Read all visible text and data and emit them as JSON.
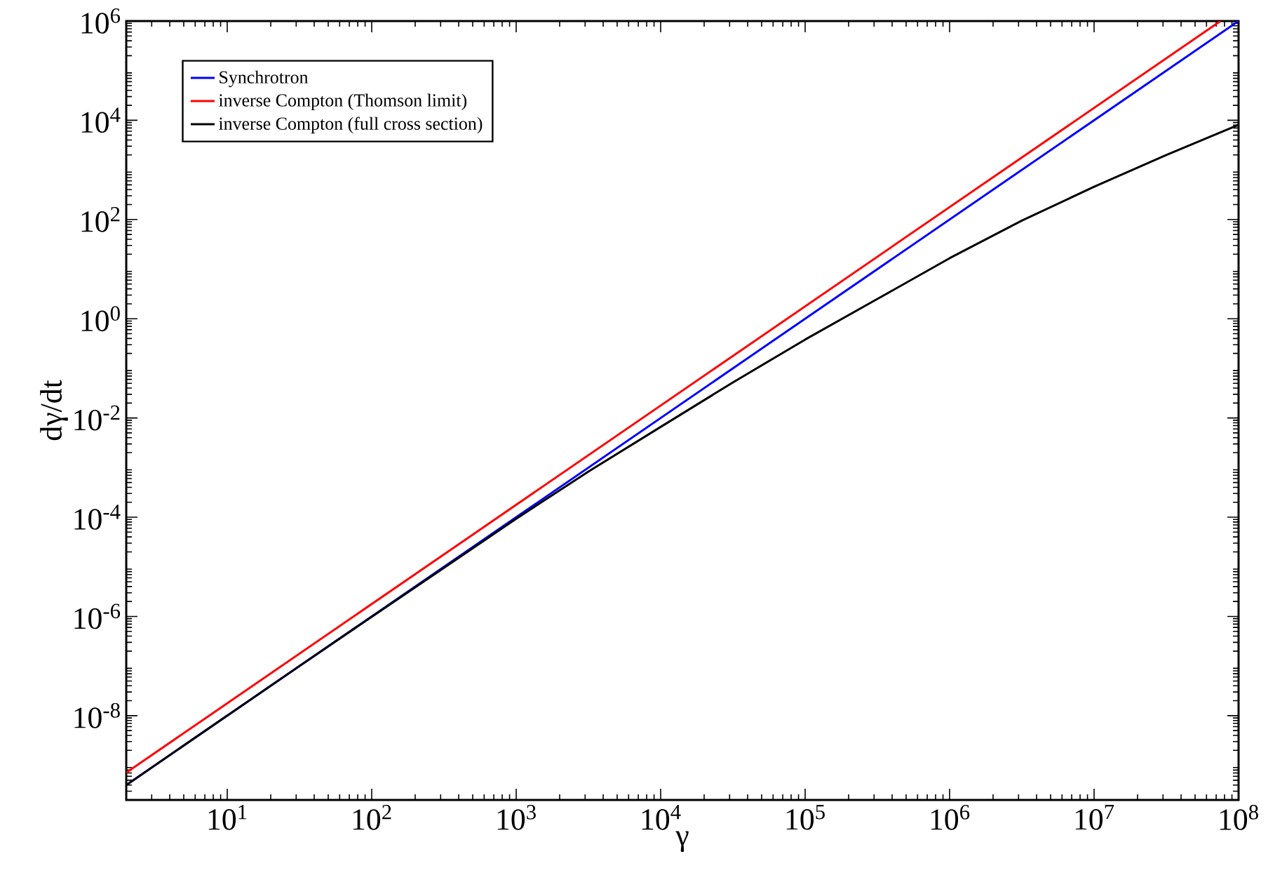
{
  "chart_data": {
    "type": "line",
    "xlabel": "γ",
    "ylabel": "dγ/dt",
    "log": "xy",
    "grid": false,
    "legend": "top left",
    "marker": "none",
    "line_style": "solid",
    "xlim": [
      2,
      100000000
    ],
    "ylim": [
      2e-10,
      1000000
    ],
    "xticks": [
      {
        "value": 10,
        "label": "10$^{1}$"
      },
      {
        "value": 100,
        "label": "10$^{2}$"
      },
      {
        "value": 1000,
        "label": "10$^{3}$"
      },
      {
        "value": 10000,
        "label": "10$^{4}$"
      },
      {
        "value": 100000,
        "label": "10$^{5}$"
      },
      {
        "value": 1000000,
        "label": "10$^{6}$"
      },
      {
        "value": 10000000,
        "label": "10$^{7}$"
      },
      {
        "value": 100000000,
        "label": "10$^{8}$"
      }
    ],
    "yticks": [
      {
        "value": 1e-08,
        "label": "10$^{-8}$"
      },
      {
        "value": 1e-06,
        "label": "10$^{-6}$"
      },
      {
        "value": 0.0001,
        "label": "10$^{-4}$"
      },
      {
        "value": 0.01,
        "label": "10$^{-2}$"
      },
      {
        "value": 1,
        "label": "10$^{0}$"
      },
      {
        "value": 100,
        "label": "10$^{2}$"
      },
      {
        "value": 10000,
        "label": "10$^{4}$"
      },
      {
        "value": 1000000,
        "label": "10$^{6}$"
      }
    ],
    "series": [
      {
        "name": "Synchrotron",
        "color": "#0000ff",
        "x": [
          2,
          100000000
        ],
        "values": [
          4e-10,
          1000000
        ]
      },
      {
        "name": "inverse Compton (Thomson limit)",
        "color": "#ff0000",
        "x": [
          2,
          75000000
        ],
        "values": [
          7.1e-10,
          1000000
        ]
      },
      {
        "name": "inverse Compton (full cross section)",
        "color": "#000000",
        "x": [
          2,
          10,
          31.6,
          100,
          316,
          1000,
          3162,
          10000,
          31623,
          100000,
          316228,
          1000000,
          3162278,
          10000000,
          31622777,
          100000000
        ],
        "values": [
          4e-10,
          1e-08,
          1e-07,
          9.8e-07,
          9.5e-06,
          9.3e-05,
          0.00083,
          0.0066,
          0.052,
          0.38,
          2.5,
          16.6,
          95,
          457,
          2000,
          8100
        ]
      }
    ]
  }
}
